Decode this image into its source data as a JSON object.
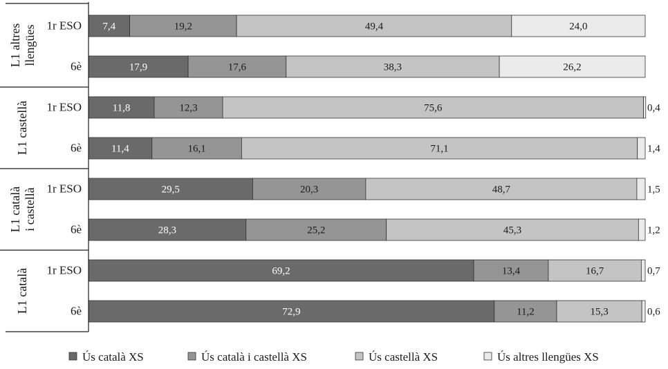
{
  "chart_data": {
    "type": "bar",
    "orientation": "horizontal",
    "stacked": true,
    "xlim": [
      0,
      100
    ],
    "grid": false,
    "legend_position": "bottom",
    "groups": [
      {
        "label": "L1 altres llengües",
        "label_lines": [
          "L1 altres",
          "llengües"
        ],
        "categories": [
          "1r ESO",
          "6è"
        ]
      },
      {
        "label": "L1 castellà",
        "label_lines": [
          "L1 castellà"
        ],
        "categories": [
          "1r ESO",
          "6è"
        ]
      },
      {
        "label": "L1 català i castellà",
        "label_lines": [
          "L1 català",
          "i castellà"
        ],
        "categories": [
          "1r ESO",
          "6è"
        ]
      },
      {
        "label": "L1 català",
        "label_lines": [
          "L1 català"
        ],
        "categories": [
          "1r ESO",
          "6è"
        ]
      }
    ],
    "series": [
      {
        "name": "Ús català XS",
        "color": "#6a6a6a",
        "values": [
          7.4,
          17.9,
          11.8,
          11.4,
          29.5,
          28.3,
          69.2,
          72.9
        ],
        "value_labels": [
          "7,4",
          "17,9",
          "11,8",
          "11,4",
          "29,5",
          "28,3",
          "69,2",
          "72,9"
        ]
      },
      {
        "name": "Ús català i castellà XS",
        "color": "#959595",
        "values": [
          19.2,
          17.6,
          12.3,
          16.1,
          20.3,
          25.2,
          13.4,
          11.2
        ],
        "value_labels": [
          "19,2",
          "17,6",
          "12,3",
          "16,1",
          "20,3",
          "25,2",
          "13,4",
          "11,2"
        ]
      },
      {
        "name": "Ús castellà XS",
        "color": "#c4c4c4",
        "values": [
          49.4,
          38.3,
          75.6,
          71.1,
          48.7,
          45.3,
          16.7,
          15.3
        ],
        "value_labels": [
          "49,4",
          "38,3",
          "75,6",
          "71,1",
          "48,7",
          "45,3",
          "16,7",
          "15,3"
        ]
      },
      {
        "name": "Ús altres llengües XS",
        "color": "#ebebeb",
        "values": [
          24.0,
          26.2,
          0.4,
          1.4,
          1.5,
          1.2,
          0.7,
          0.6
        ],
        "value_labels": [
          "24,0",
          "26,2",
          "0,4",
          "1,4",
          "1,5",
          "1,2",
          "0,7",
          "0,6"
        ]
      }
    ]
  }
}
